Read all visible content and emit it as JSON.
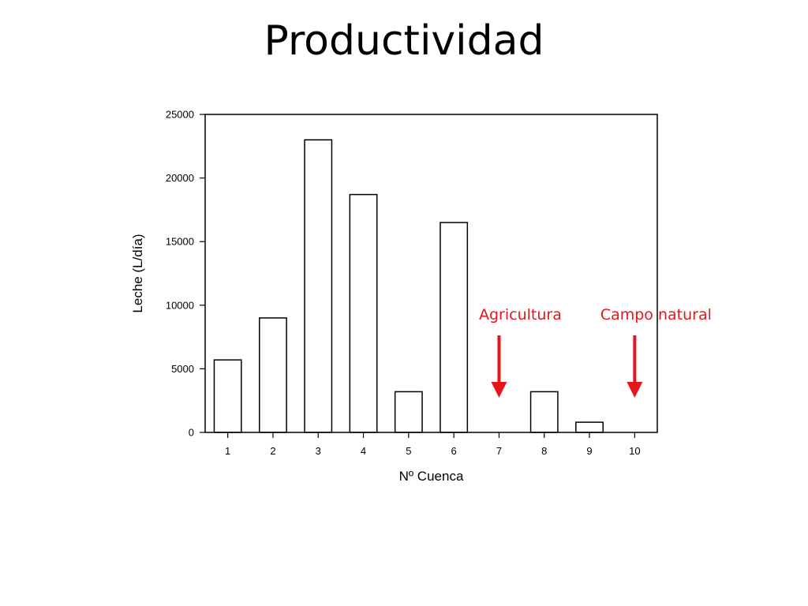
{
  "slide": {
    "title": "Productividad"
  },
  "colors": {
    "bar_fill": "#ffffff",
    "bar_stroke": "#000000",
    "annotation": "#e8141b"
  },
  "chart_data": {
    "type": "bar",
    "title": "",
    "xlabel": "Nº Cuenca",
    "ylabel": "Leche (L/día)",
    "categories": [
      "1",
      "2",
      "3",
      "4",
      "5",
      "6",
      "7",
      "8",
      "9",
      "10"
    ],
    "values": [
      5700,
      9000,
      23000,
      18700,
      3200,
      16500,
      0,
      3200,
      800,
      0
    ],
    "ylim": [
      0,
      25000
    ],
    "yticks": [
      "0",
      "5000",
      "10000",
      "15000",
      "20000",
      "25000"
    ],
    "grid": false,
    "annotations": [
      {
        "text": "Agricultura",
        "category": "7",
        "style": "red-down-arrow"
      },
      {
        "text": "Campo natural",
        "category": "10",
        "style": "red-down-arrow"
      }
    ]
  }
}
